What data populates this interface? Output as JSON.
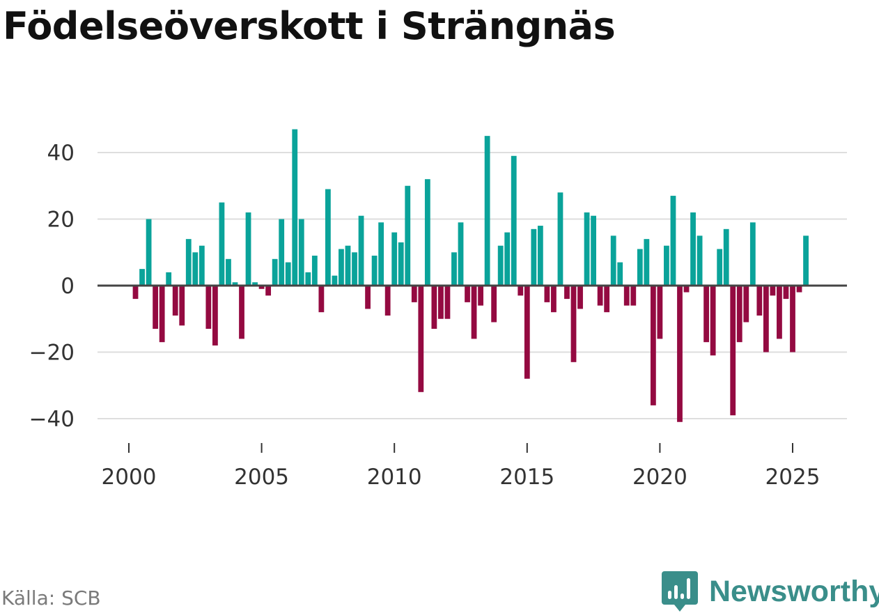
{
  "chart_data": {
    "type": "bar",
    "title": "Födelseöverskott i Strängnäs",
    "source": "Källa: SCB",
    "xlabel": "",
    "ylabel": "",
    "x_ticks": [
      2000,
      2005,
      2010,
      2015,
      2020,
      2025
    ],
    "y_ticks": [
      40,
      20,
      0,
      -20,
      -40
    ],
    "y_tick_labels": [
      "40",
      "20",
      "0",
      "−20",
      "−40"
    ],
    "ylim": [
      -44,
      50
    ],
    "xlim": [
      1998.75,
      2027.25
    ],
    "x_start": 2000.0,
    "x_step": 0.25,
    "grid": true,
    "colors": {
      "positive": "#0aa39a",
      "negative": "#940a41",
      "grid": "#dedede",
      "zero_line": "#444444"
    },
    "values": [
      0,
      -4,
      5,
      20,
      -13,
      -17,
      4,
      -9,
      -12,
      14,
      10,
      12,
      -13,
      -18,
      25,
      8,
      1,
      -16,
      22,
      1,
      -1,
      -3,
      8,
      20,
      7,
      47,
      20,
      4,
      9,
      -8,
      29,
      3,
      11,
      12,
      10,
      21,
      -7,
      9,
      19,
      -9,
      16,
      13,
      30,
      -5,
      -32,
      32,
      -13,
      -10,
      -10,
      10,
      19,
      -5,
      -16,
      -6,
      45,
      -11,
      12,
      16,
      39,
      -3,
      -28,
      17,
      18,
      -5,
      -8,
      28,
      -4,
      -23,
      -7,
      22,
      21,
      -6,
      -8,
      15,
      7,
      -6,
      -6,
      11,
      14,
      -36,
      -16,
      12,
      27,
      -41,
      -2,
      22,
      15,
      -17,
      -21,
      11,
      17,
      -39,
      -17,
      -11,
      19,
      -9,
      -20,
      -3,
      -16,
      -4,
      -20,
      -2,
      15
    ]
  },
  "brand": {
    "name": "Newsworthy",
    "logo_color": "#3a8e8a"
  }
}
